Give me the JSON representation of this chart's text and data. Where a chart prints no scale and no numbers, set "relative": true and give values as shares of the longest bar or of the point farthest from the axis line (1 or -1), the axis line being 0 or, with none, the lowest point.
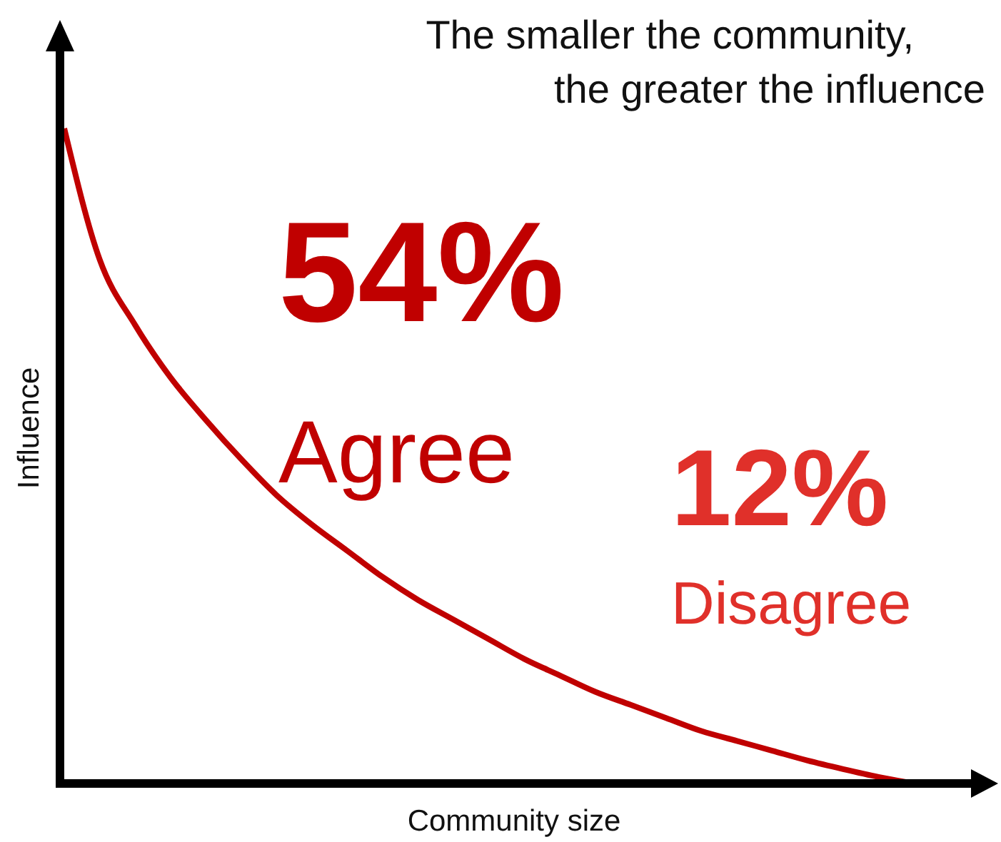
{
  "chart_data": {
    "type": "line",
    "relative": true,
    "title": "The smaller the community,\nthe greater the influence",
    "xlabel": "Community size",
    "ylabel": "Influence",
    "categories": [
      null,
      null,
      null,
      null,
      null,
      null,
      null,
      null,
      null,
      null,
      null,
      null,
      null,
      null,
      null,
      null,
      null,
      null,
      null,
      null,
      null,
      null,
      null,
      null,
      null
    ],
    "series": [
      {
        "color": "#c00000",
        "values": [
          1,
          0.8,
          0.7,
          0.62,
          0.555,
          0.495,
          0.44,
          0.395,
          0.355,
          0.315,
          0.28,
          0.25,
          0.22,
          0.19,
          0.165,
          0.14,
          0.12,
          0.1,
          0.08,
          0.065,
          0.05,
          0.035,
          0.022,
          0.01,
          0
        ]
      }
    ],
    "annotations": [
      "54%",
      "Agree",
      "12%",
      "Disagree"
    ]
  }
}
